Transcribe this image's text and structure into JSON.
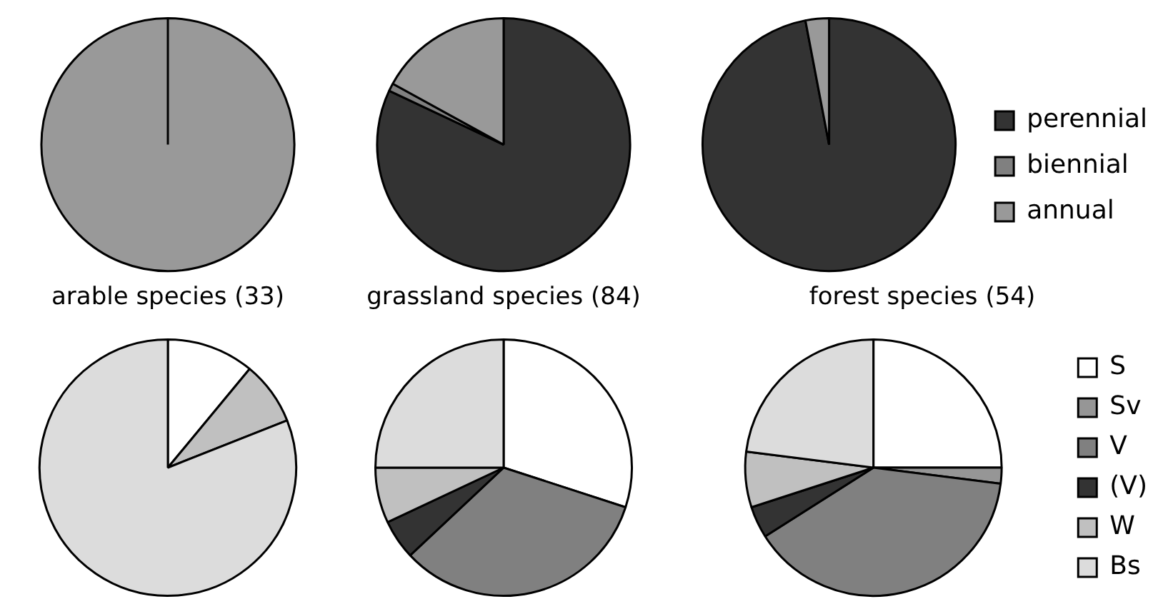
{
  "chart_data": [
    {
      "type": "pie",
      "title": "arable species (33)",
      "categories": [
        null,
        null,
        null
      ],
      "values": [
        0,
        0,
        100
      ],
      "colors": [
        "#333333",
        "#808080",
        "#999999"
      ],
      "legend": false
    },
    {
      "type": "pie",
      "title": "grassland species (84)",
      "categories": [
        null,
        null,
        null
      ],
      "values": [
        82,
        1,
        17
      ],
      "colors": [
        "#333333",
        "#808080",
        "#999999"
      ],
      "legend": false
    },
    {
      "type": "pie",
      "title": "forest species (54)",
      "categories": [
        "perennial",
        "biennial",
        "annual"
      ],
      "values": [
        97,
        0,
        3
      ],
      "colors": [
        "#333333",
        "#808080",
        "#999999"
      ],
      "legend": "right"
    },
    {
      "type": "pie",
      "categories": [
        null,
        null,
        null,
        null,
        null,
        null
      ],
      "values": [
        11,
        0,
        0,
        0,
        8,
        81
      ],
      "colors": [
        "#ffffff",
        "#969696",
        "#808080",
        "#333333",
        "#c0c0c0",
        "#dcdcdc"
      ],
      "legend": false
    },
    {
      "type": "pie",
      "categories": [
        null,
        null,
        null,
        null,
        null,
        null
      ],
      "values": [
        30,
        0,
        33,
        5,
        7,
        25
      ],
      "colors": [
        "#ffffff",
        "#969696",
        "#808080",
        "#333333",
        "#c0c0c0",
        "#dcdcdc"
      ],
      "legend": false
    },
    {
      "type": "pie",
      "categories": [
        "S",
        "Sv",
        "V",
        "(V)",
        "W",
        "Bs"
      ],
      "values": [
        25,
        2,
        39,
        4,
        7,
        23
      ],
      "colors": [
        "#ffffff",
        "#969696",
        "#808080",
        "#333333",
        "#c0c0c0",
        "#dcdcdc"
      ],
      "legend": "right"
    }
  ]
}
